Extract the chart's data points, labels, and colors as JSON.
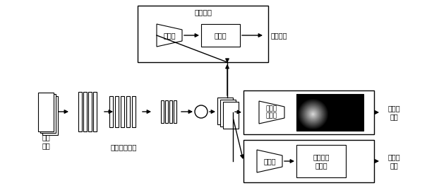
{
  "bg_color": "#ffffff",
  "line_color": "#000000",
  "box_color": "#ffffff",
  "text_color": "#000000",
  "fig_width": 6.05,
  "fig_height": 2.66,
  "dpi": 100,
  "labels": {
    "image_sample": "图像\n样本",
    "feature_net": "特征提取网络",
    "domain_discriminator": "域判别器",
    "domain_classify": "域判别",
    "data_domain": "数据域",
    "domain_loss": "域损失值",
    "depth_net": "深度估\n计网络",
    "depth_loss": "深度损\n失值",
    "classifier": "分类器",
    "is_live": "是否为活\n体图像",
    "cls_loss": "分类损\n失值",
    "multiply": "⊗"
  }
}
